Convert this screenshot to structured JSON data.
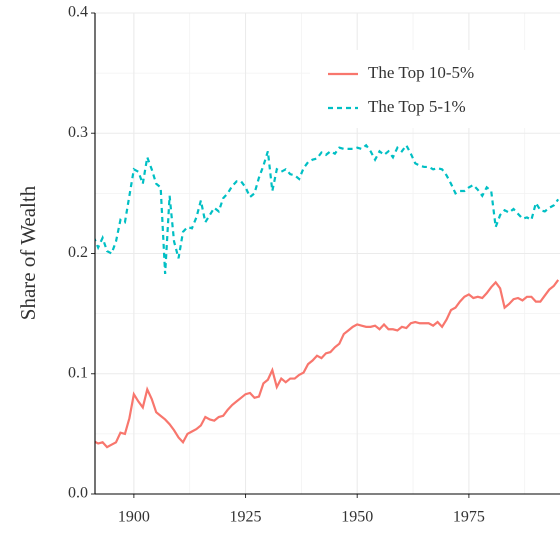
{
  "chart_data": {
    "type": "line",
    "y_label": "Share of Wealth",
    "x": [
      1891,
      1892,
      1893,
      1894,
      1895,
      1896,
      1897,
      1898,
      1899,
      1900,
      1901,
      1902,
      1903,
      1904,
      1905,
      1906,
      1907,
      1908,
      1909,
      1910,
      1911,
      1912,
      1913,
      1914,
      1915,
      1916,
      1917,
      1918,
      1919,
      1920,
      1921,
      1922,
      1923,
      1924,
      1925,
      1926,
      1927,
      1928,
      1929,
      1930,
      1931,
      1932,
      1933,
      1934,
      1935,
      1936,
      1937,
      1938,
      1939,
      1940,
      1941,
      1942,
      1943,
      1944,
      1945,
      1946,
      1947,
      1948,
      1949,
      1950,
      1951,
      1952,
      1953,
      1954,
      1955,
      1956,
      1957,
      1958,
      1959,
      1960,
      1961,
      1962,
      1963,
      1964,
      1965,
      1966,
      1967,
      1968,
      1969,
      1970,
      1971,
      1972,
      1973,
      1974,
      1975,
      1976,
      1977,
      1978,
      1979,
      1980,
      1981,
      1982,
      1983,
      1984,
      1985,
      1986,
      1987,
      1988,
      1989,
      1990,
      1991,
      1992,
      1993,
      1994,
      1995
    ],
    "series": [
      {
        "name": "The Top 10-5%",
        "color": "#f8766d",
        "linestyle": "solid",
        "values": [
          0.044,
          0.042,
          0.043,
          0.039,
          0.041,
          0.043,
          0.051,
          0.05,
          0.063,
          0.083,
          0.077,
          0.072,
          0.087,
          0.079,
          0.068,
          0.065,
          0.062,
          0.058,
          0.053,
          0.047,
          0.043,
          0.05,
          0.052,
          0.054,
          0.057,
          0.064,
          0.062,
          0.061,
          0.064,
          0.065,
          0.07,
          0.074,
          0.077,
          0.08,
          0.083,
          0.084,
          0.08,
          0.081,
          0.092,
          0.095,
          0.103,
          0.089,
          0.096,
          0.093,
          0.096,
          0.096,
          0.099,
          0.101,
          0.108,
          0.111,
          0.115,
          0.113,
          0.117,
          0.118,
          0.122,
          0.125,
          0.133,
          0.136,
          0.139,
          0.141,
          0.14,
          0.139,
          0.139,
          0.14,
          0.137,
          0.141,
          0.137,
          0.137,
          0.136,
          0.139,
          0.138,
          0.142,
          0.143,
          0.142,
          0.142,
          0.142,
          0.14,
          0.143,
          0.139,
          0.145,
          0.153,
          0.155,
          0.16,
          0.164,
          0.166,
          0.163,
          0.164,
          0.163,
          0.167,
          0.172,
          0.176,
          0.171,
          0.155,
          0.158,
          0.162,
          0.163,
          0.161,
          0.164,
          0.164,
          0.16,
          0.16,
          0.165,
          0.17,
          0.173,
          0.178
        ]
      },
      {
        "name": "The Top 5-1%",
        "color": "#00bfc4",
        "linestyle": "dashed",
        "values": [
          0.214,
          0.205,
          0.213,
          0.202,
          0.2,
          0.21,
          0.228,
          0.226,
          0.248,
          0.27,
          0.268,
          0.258,
          0.28,
          0.27,
          0.258,
          0.255,
          0.183,
          0.248,
          0.21,
          0.196,
          0.218,
          0.222,
          0.221,
          0.23,
          0.244,
          0.226,
          0.232,
          0.238,
          0.235,
          0.246,
          0.25,
          0.256,
          0.26,
          0.26,
          0.255,
          0.247,
          0.25,
          0.263,
          0.273,
          0.285,
          0.252,
          0.27,
          0.268,
          0.27,
          0.266,
          0.265,
          0.262,
          0.271,
          0.276,
          0.278,
          0.279,
          0.284,
          0.282,
          0.285,
          0.283,
          0.288,
          0.287,
          0.287,
          0.287,
          0.288,
          0.287,
          0.29,
          0.285,
          0.278,
          0.285,
          0.282,
          0.285,
          0.28,
          0.288,
          0.285,
          0.29,
          0.283,
          0.275,
          0.273,
          0.272,
          0.272,
          0.27,
          0.271,
          0.27,
          0.265,
          0.258,
          0.25,
          0.252,
          0.252,
          0.255,
          0.257,
          0.253,
          0.248,
          0.255,
          0.252,
          0.222,
          0.232,
          0.236,
          0.234,
          0.237,
          0.233,
          0.229,
          0.23,
          0.228,
          0.242,
          0.236,
          0.235,
          0.238,
          0.24,
          0.245
        ]
      }
    ],
    "xlim": [
      1891.3,
      1995.4
    ],
    "xticks": [
      1900,
      1925,
      1950,
      1975
    ],
    "ylim": [
      0,
      0.4
    ],
    "yticks": [
      {
        "value": 0,
        "label": "0.0"
      },
      0.1,
      0.2,
      0.3,
      0.4
    ],
    "grid": true,
    "legend": "top-right"
  }
}
